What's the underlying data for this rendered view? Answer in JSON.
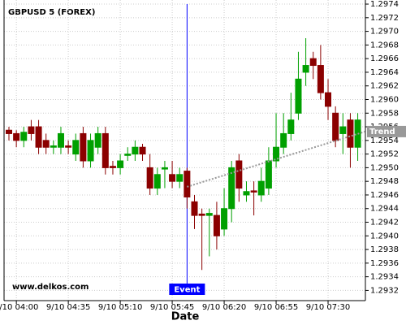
{
  "chart_data": {
    "type": "candlestick",
    "title": "GBPUSD 5 (FOREX)",
    "x_label": "Date",
    "watermark": "www.delkos.com",
    "categories": [
      null,
      "9/10 04:00",
      null,
      null,
      null,
      null,
      null,
      null,
      "9/10 04:35",
      null,
      null,
      null,
      null,
      null,
      null,
      "9/10 05:10",
      null,
      null,
      null,
      null,
      null,
      null,
      "9/10 05:45",
      null,
      null,
      null,
      null,
      null,
      null,
      "9/10 06:20",
      null,
      null,
      null,
      null,
      null,
      null,
      "9/10 06:55",
      null,
      null,
      null,
      null,
      null,
      null,
      "9/10 07:30",
      null,
      null,
      null,
      null
    ],
    "open": [
      1.29555,
      1.2955,
      1.2954,
      1.2956,
      1.2956,
      1.2954,
      1.2953,
      1.2953,
      1.29532,
      1.2952,
      1.2955,
      1.2951,
      1.2953,
      1.2955,
      1.29502,
      1.295,
      1.29518,
      1.2952,
      1.2953,
      1.295,
      1.2947,
      1.29498,
      1.2949,
      1.2948,
      1.29495,
      1.2945,
      1.29432,
      1.2943,
      1.2943,
      1.2941,
      1.2944,
      1.2951,
      1.2946,
      1.29466,
      1.2946,
      1.2947,
      1.2951,
      1.2953,
      1.2955,
      1.2958,
      1.2964,
      1.2966,
      1.2965,
      1.2961,
      1.2958,
      1.2955,
      1.2957,
      1.2953
    ],
    "close": [
      1.2955,
      1.2954,
      1.29552,
      1.2955,
      1.2953,
      1.2953,
      1.29532,
      1.2955,
      1.2953,
      1.2954,
      1.2951,
      1.2954,
      1.2955,
      1.295,
      1.295,
      1.2951,
      1.2952,
      1.2953,
      1.2952,
      1.2947,
      1.2949,
      1.295,
      1.2948,
      1.2949,
      1.29457,
      1.2943,
      1.2943,
      1.29433,
      1.294,
      1.2944,
      1.295,
      1.2947,
      1.29465,
      1.29465,
      1.2948,
      1.2951,
      1.2953,
      1.2955,
      1.2957,
      1.2963,
      1.2965,
      1.2965,
      1.2961,
      1.2959,
      1.2954,
      1.2956,
      1.2953,
      1.2957
    ],
    "high": [
      1.2956,
      1.29555,
      1.2956,
      1.2957,
      1.2957,
      1.2955,
      1.2954,
      1.2956,
      1.2954,
      1.2955,
      1.2956,
      1.2955,
      1.2956,
      1.2956,
      1.2951,
      1.2952,
      1.2953,
      1.2954,
      1.29535,
      1.2952,
      1.295,
      1.2951,
      1.2951,
      1.295,
      1.295,
      1.2946,
      1.2944,
      1.2944,
      1.2945,
      1.2947,
      1.2951,
      1.2952,
      1.2948,
      1.2948,
      1.295,
      1.2953,
      1.2958,
      1.2958,
      1.2961,
      1.2967,
      1.2969,
      1.2967,
      1.2968,
      1.2963,
      1.2959,
      1.2958,
      1.2958,
      1.2958
    ],
    "low": [
      1.2954,
      1.2953,
      1.2953,
      1.2954,
      1.2952,
      1.2952,
      1.2952,
      1.2952,
      1.2952,
      1.2951,
      1.295,
      1.295,
      1.2952,
      1.2949,
      1.2949,
      1.2949,
      1.2951,
      1.2951,
      1.2951,
      1.2946,
      1.2946,
      1.2947,
      1.2947,
      1.2947,
      1.2944,
      1.2941,
      1.2935,
      1.2937,
      1.2938,
      1.294,
      1.2942,
      1.2945,
      1.2945,
      1.2943,
      1.2945,
      1.2946,
      1.295,
      1.2952,
      1.2954,
      1.2957,
      1.2962,
      1.2963,
      1.296,
      1.2957,
      1.2953,
      1.2952,
      1.295,
      1.2951
    ],
    "up_color": "#00a000",
    "down_color": "#8b0000",
    "ylim": [
      1.29305,
      1.29746
    ],
    "yticks": [
      1.2932,
      1.2934,
      1.2936,
      1.2938,
      {
        "value": 1.294,
        "label": "1.2940"
      },
      1.2942,
      1.2944,
      1.2946,
      1.2948,
      {
        "value": 1.295,
        "label": "1.2950"
      },
      1.2952,
      1.2954,
      1.2956,
      1.2958,
      {
        "value": 1.296,
        "label": "1.2960"
      },
      1.2962,
      1.2964,
      1.2966,
      1.2968,
      {
        "value": 1.297,
        "label": "1.2970"
      },
      1.2972,
      1.2974
    ],
    "grid": true,
    "event": {
      "label": "Event",
      "index": 24,
      "color": "#0000ff"
    },
    "trend": {
      "label": "Trend",
      "x": [
        24,
        48
      ],
      "values": [
        1.29472,
        1.29553
      ],
      "color": "#999999"
    }
  }
}
